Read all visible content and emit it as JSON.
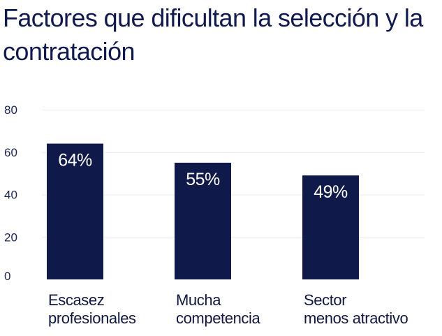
{
  "chart_data": {
    "type": "bar",
    "title": "Factores que dificultan la selección y la contratación",
    "categories": [
      [
        "Escasez",
        "profesionales"
      ],
      [
        "Mucha",
        "competencia"
      ],
      [
        "Sector",
        "menos atractivo"
      ]
    ],
    "values": [
      64,
      55,
      49
    ],
    "value_labels": [
      "64%",
      "55%",
      "49%"
    ],
    "yticks": [
      0,
      20,
      40,
      60,
      80
    ],
    "ylim": [
      0,
      80
    ],
    "grid": true,
    "bar_color": "#0f1a4a",
    "grid_color": "#e9ebef"
  }
}
